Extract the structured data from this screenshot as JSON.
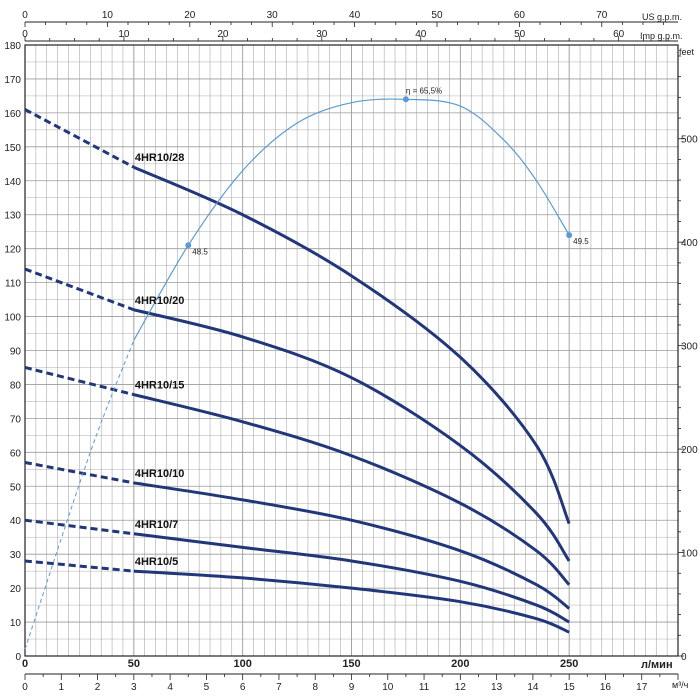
{
  "chart_data": {
    "type": "line",
    "title": "",
    "xlabel": "л/мин",
    "ylabel": "",
    "xlim": [
      0,
      300
    ],
    "ylim": [
      0,
      180
    ],
    "x_ticks": [
      0,
      50,
      100,
      150,
      200,
      250
    ],
    "y_ticks": [
      0,
      10,
      20,
      30,
      40,
      50,
      60,
      70,
      80,
      90,
      100,
      110,
      120,
      130,
      140,
      150,
      160,
      170,
      180
    ],
    "grid": true,
    "series": [
      {
        "name": "4HR10/28",
        "x": [
          0,
          50,
          100,
          150,
          200,
          235,
          250
        ],
        "y": [
          161,
          144,
          130,
          112,
          88,
          62,
          39
        ],
        "solid_from": 50
      },
      {
        "name": "4HR10/20",
        "x": [
          0,
          50,
          100,
          150,
          200,
          235,
          250
        ],
        "y": [
          114,
          102,
          94,
          82,
          62,
          42,
          28
        ],
        "solid_from": 50
      },
      {
        "name": "4HR10/15",
        "x": [
          0,
          50,
          100,
          150,
          200,
          235,
          250
        ],
        "y": [
          85,
          77,
          69,
          59,
          45,
          31,
          21
        ],
        "solid_from": 50
      },
      {
        "name": "4HR10/10",
        "x": [
          0,
          50,
          100,
          150,
          200,
          235,
          250
        ],
        "y": [
          57,
          51,
          46,
          40,
          31,
          21,
          14
        ],
        "solid_from": 50
      },
      {
        "name": "4HR10/7",
        "x": [
          0,
          50,
          100,
          150,
          200,
          235,
          250
        ],
        "y": [
          40,
          36,
          32,
          28,
          22,
          15,
          10
        ],
        "solid_from": 50
      },
      {
        "name": "4HR10/5",
        "x": [
          0,
          50,
          100,
          150,
          200,
          235,
          250
        ],
        "y": [
          28,
          25,
          23,
          20,
          16,
          11,
          7
        ],
        "solid_from": 50
      }
    ],
    "efficiency": {
      "x": [
        0,
        30,
        50,
        75,
        100,
        125,
        150,
        175,
        200,
        220,
        235,
        250
      ],
      "y": [
        2,
        60,
        93,
        121,
        143,
        157,
        163,
        164,
        162,
        152,
        140,
        124
      ],
      "solid_from": 50,
      "points": [
        {
          "x": 75,
          "y": 121,
          "label": "48.5"
        },
        {
          "x": 175,
          "y": 164,
          "label": "η = 65,5%"
        },
        {
          "x": 250,
          "y": 124,
          "label": "49.5"
        }
      ]
    },
    "axes": {
      "top_us": {
        "label": "US g.p.m.",
        "max": 79.25,
        "ticks": [
          0,
          10,
          20,
          30,
          40,
          50,
          60,
          70
        ]
      },
      "top_imp": {
        "label": "Imp g.p.m.",
        "max": 66.0,
        "ticks": [
          0,
          10,
          20,
          30,
          40,
          50,
          60
        ]
      },
      "right_feet": {
        "label": "feet",
        "max": 590.6,
        "ticks": [
          0,
          100,
          200,
          300,
          400,
          500
        ]
      },
      "bottom_m3h": {
        "label": "м³/ч",
        "max": 18,
        "ticks": [
          0,
          1,
          2,
          3,
          4,
          5,
          6,
          7,
          8,
          9,
          10,
          11,
          12,
          13,
          14,
          15,
          16,
          17
        ]
      }
    },
    "colors": {
      "curve": "#22377a",
      "efficiency": "#5b9bd5",
      "grid": "#9a9a9a",
      "axis": "#222222"
    }
  }
}
